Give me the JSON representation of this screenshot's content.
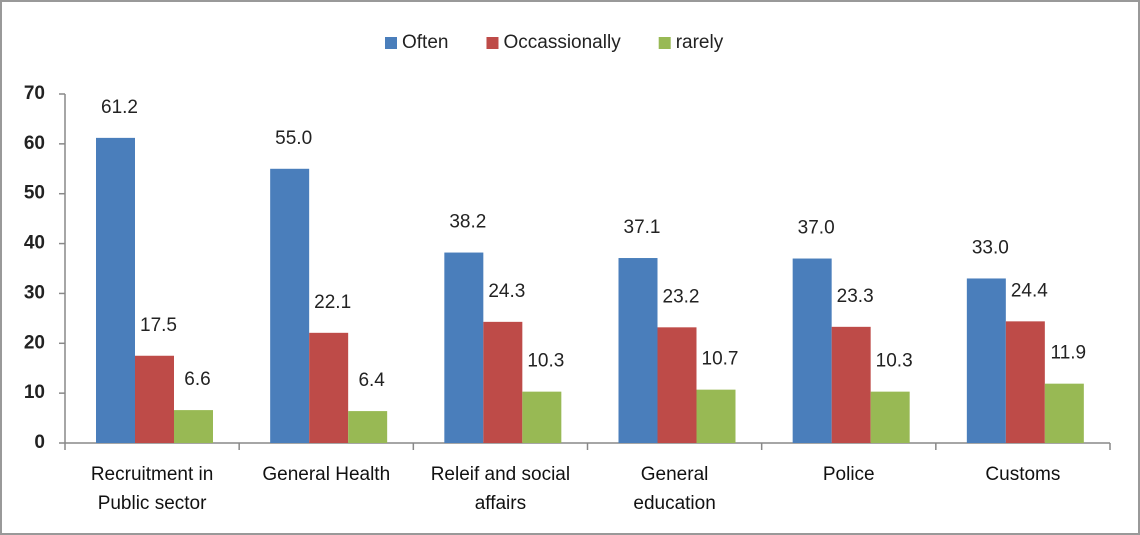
{
  "chart_data": {
    "type": "bar",
    "categories": [
      "Recruitment in Public sector",
      "General Health",
      "Releif and social affairs",
      "General education",
      "Police",
      "Customs"
    ],
    "series": [
      {
        "name": "Often",
        "color": "#4a7ebb",
        "values": [
          61.2,
          55,
          38.2,
          37.1,
          37,
          33
        ],
        "value_labels": [
          "61.2",
          "55.0",
          "38.2",
          "37.1",
          "37.0",
          "33.0"
        ]
      },
      {
        "name": "Occassionally",
        "color": "#be4b48",
        "values": [
          17.5,
          22.1,
          24.3,
          23.2,
          23.3,
          24.4
        ],
        "value_labels": [
          "17.5",
          "22.1",
          "24.3",
          "23.2",
          "23.3",
          "24.4"
        ]
      },
      {
        "name": "rarely",
        "color": "#98b954",
        "values": [
          6.6,
          6.4,
          10.3,
          10.7,
          10.3,
          11.9
        ],
        "value_labels": [
          "6.6",
          "6.4",
          "10.3",
          "10.7",
          "10.3",
          "11.9"
        ]
      }
    ],
    "ylim": [
      0,
      70
    ],
    "yticks": [
      0,
      10,
      20,
      30,
      40,
      50,
      60,
      70
    ],
    "grid": false,
    "legend": "top"
  }
}
